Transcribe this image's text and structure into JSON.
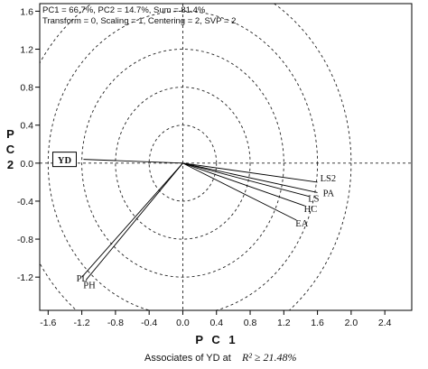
{
  "chart_data": {
    "type": "biplot",
    "header": {
      "line1": "PC1 = 66.7%, PC2 = 14.7%, Sum = 81.4%",
      "line2": "Transform = 0, Scaling = 1, Centering = 2, SVP = 2"
    },
    "xlabel": "P C 1",
    "ylabel": "P C 2",
    "xlim": [
      -1.7,
      2.72
    ],
    "ylim": [
      -1.55,
      1.68
    ],
    "xticks": [
      -1.6,
      -1.2,
      -0.8,
      -0.4,
      0.0,
      0.4,
      0.8,
      1.2,
      1.6,
      2.0,
      2.4
    ],
    "yticks": [
      1.6,
      1.2,
      0.8,
      0.4,
      0.0,
      -0.4,
      -0.8,
      -1.2
    ],
    "xtick_labels": [
      "-1.6",
      "-1.2",
      "-0.8",
      "-0.4",
      "0.0",
      "0.4",
      "0.8",
      "1.2",
      "1.6",
      "2.0",
      "2.4"
    ],
    "ytick_labels": [
      "1.6",
      "1.2",
      "0.8",
      "0.4",
      "0.0",
      "-0.4",
      "-0.8",
      "-1.2"
    ],
    "circle_radii": [
      0.4,
      0.8,
      1.2,
      1.6,
      2.0
    ],
    "vectors": [
      {
        "label": "YD",
        "x": -1.18,
        "y": 0.04,
        "boxed": true
      },
      {
        "label": "LS2",
        "x": 1.6,
        "y": -0.2,
        "boxed": false
      },
      {
        "label": "PA",
        "x": 1.6,
        "y": -0.31,
        "boxed": false
      },
      {
        "label": "LS",
        "x": 1.5,
        "y": -0.35,
        "boxed": false
      },
      {
        "label": "HC",
        "x": 1.45,
        "y": -0.45,
        "boxed": false
      },
      {
        "label": "EA",
        "x": 1.35,
        "y": -0.6,
        "boxed": false
      },
      {
        "label": "PL",
        "x": -1.2,
        "y": -1.2,
        "boxed": false
      },
      {
        "label": "PH",
        "x": -1.15,
        "y": -1.23,
        "boxed": false
      }
    ],
    "caption": {
      "text": "Associates of YD at",
      "math": "R² ≥ 21.48%"
    }
  }
}
